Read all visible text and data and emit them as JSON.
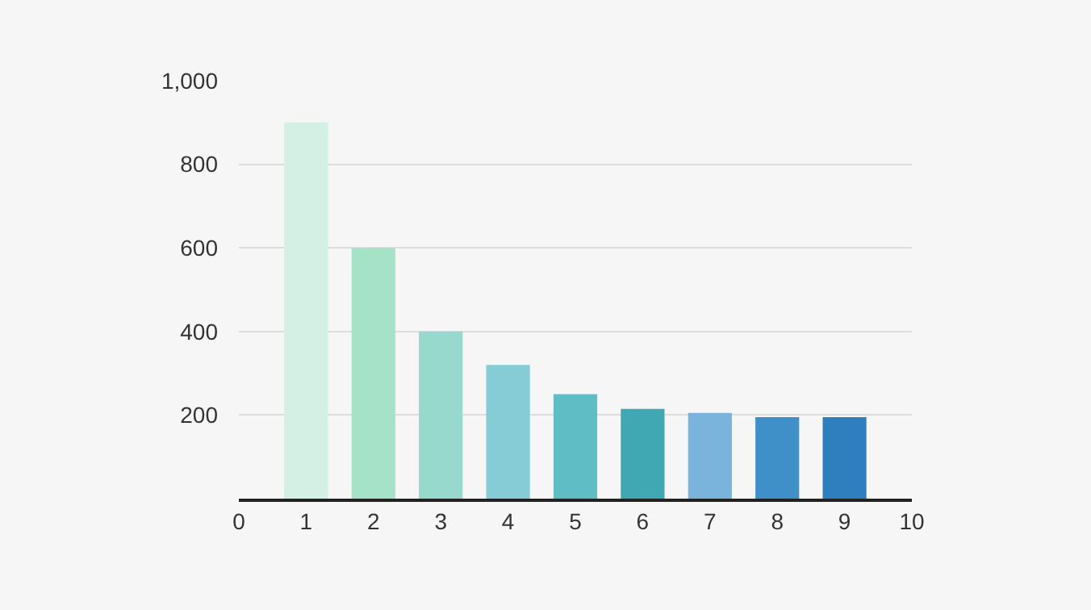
{
  "chart_data": {
    "type": "bar",
    "x": [
      1,
      2,
      3,
      4,
      5,
      6,
      7,
      8,
      9
    ],
    "values": [
      900,
      600,
      400,
      320,
      250,
      215,
      205,
      195,
      195
    ],
    "colors": [
      "#d4efe3",
      "#a6e2c7",
      "#98d9cd",
      "#86ccd6",
      "#5ebdc5",
      "#40a8b2",
      "#7ab3dc",
      "#3f90c8",
      "#2f7fbf"
    ],
    "xlim": [
      0,
      10
    ],
    "xticks": [
      0,
      1,
      2,
      3,
      4,
      5,
      6,
      7,
      8,
      9,
      10
    ],
    "ylim": [
      0,
      1000
    ],
    "yticks": [
      {
        "value": 200,
        "label": "200"
      },
      {
        "value": 400,
        "label": "400"
      },
      {
        "value": 600,
        "label": "600"
      },
      {
        "value": 800,
        "label": "800"
      },
      {
        "value": 1000,
        "label": "1,000"
      }
    ],
    "grid": "y"
  }
}
